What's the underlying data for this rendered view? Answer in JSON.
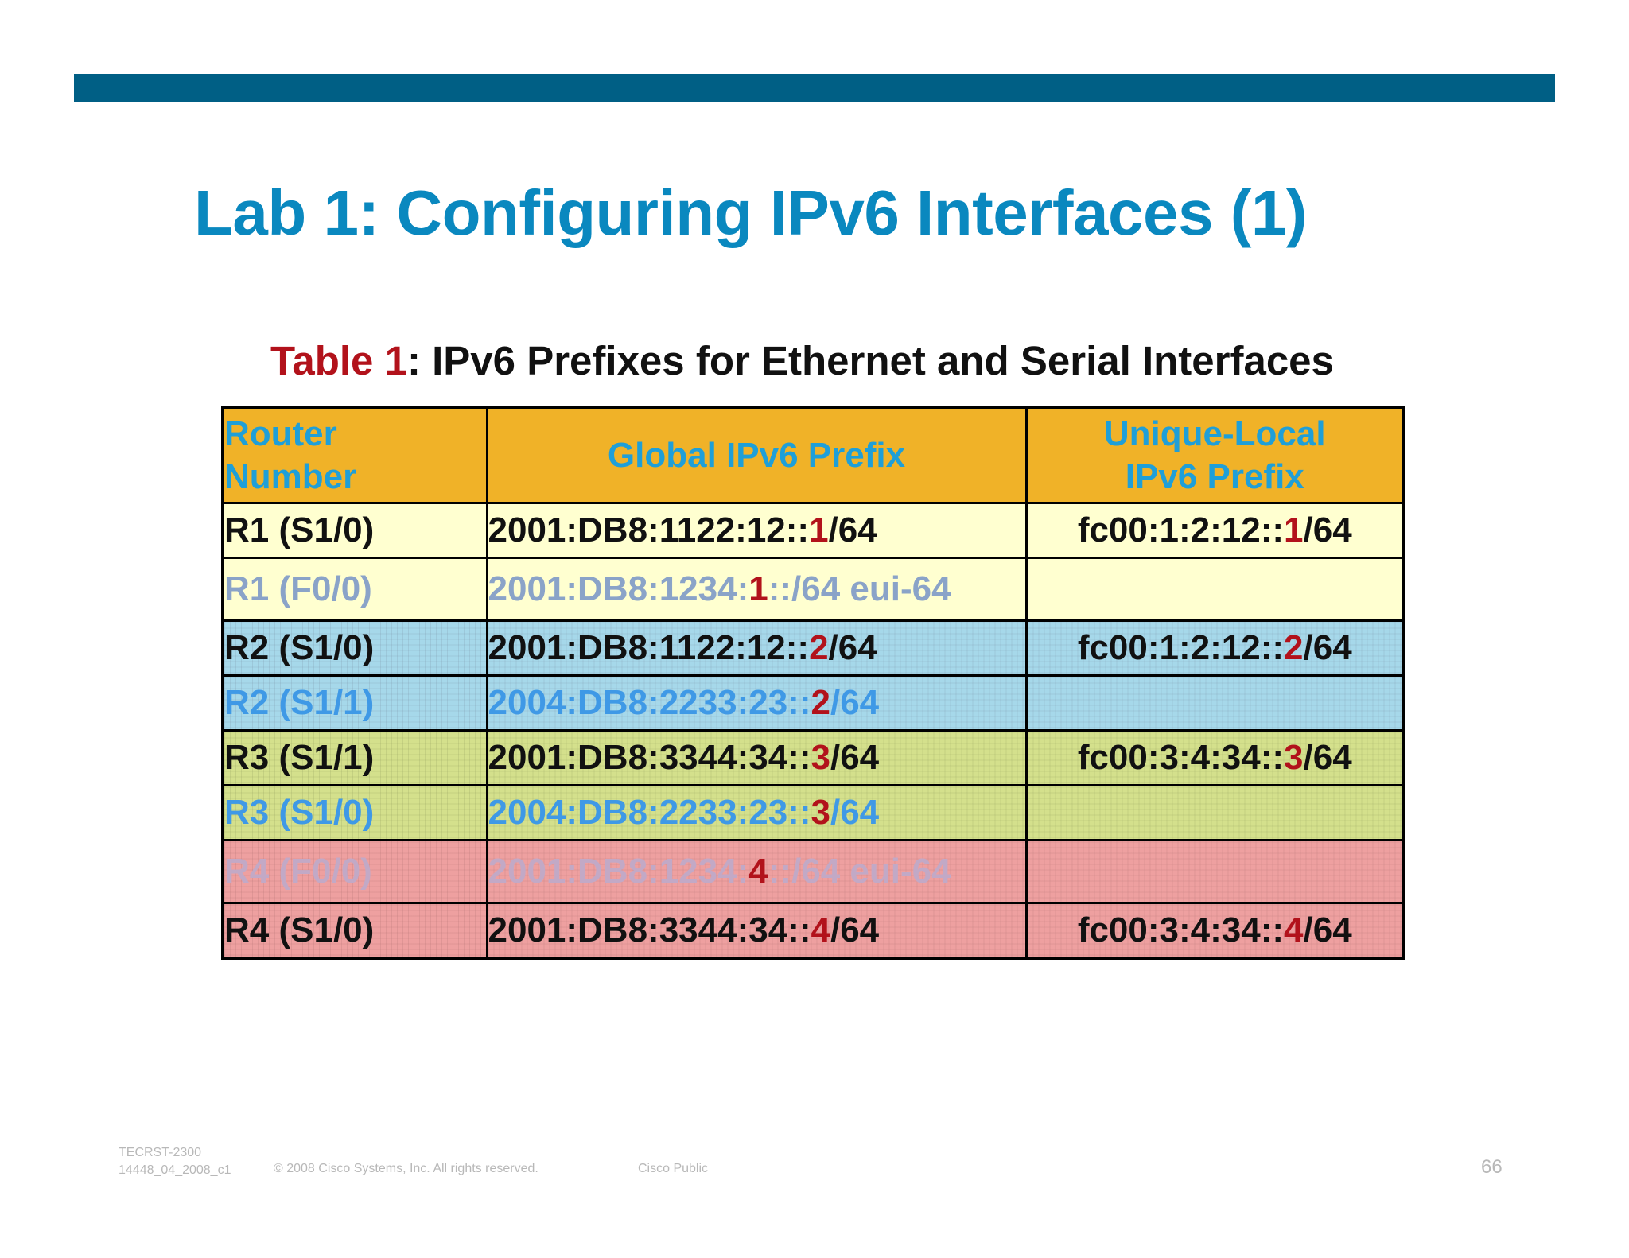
{
  "slide": {
    "title": "Lab 1: Configuring IPv6 Interfaces (1)",
    "caption_label": "Table 1",
    "caption_rest": ": IPv6 Prefixes for Ethernet and Serial Interfaces"
  },
  "table": {
    "headers": {
      "router_line1": "Router",
      "router_line2": "Number",
      "global": "Global IPv6 Prefix",
      "ula_line1": "Unique-Local",
      "ula_line2": "IPv6 Prefix"
    },
    "rows": [
      {
        "router": "R1 (S1/0)",
        "global_pre": "2001:DB8:1122:12::",
        "global_host": "1",
        "global_post": "/64",
        "ula_pre": "fc00:1:2:12::",
        "ula_host": "1",
        "ula_post": "/64"
      },
      {
        "router": "R1 (F0/0)",
        "global_pre": "2001:DB8:1234:",
        "global_host": "1",
        "global_post": "::/64 eui-64",
        "ula_pre": "",
        "ula_host": "",
        "ula_post": ""
      },
      {
        "router": "R2 (S1/0)",
        "global_pre": "2001:DB8:1122:12::",
        "global_host": "2",
        "global_post": "/64",
        "ula_pre": "fc00:1:2:12::",
        "ula_host": "2",
        "ula_post": "/64"
      },
      {
        "router": "R2 (S1/1)",
        "global_pre": "2004:DB8:2233:23::",
        "global_host": "2",
        "global_post": "/64",
        "ula_pre": "",
        "ula_host": "",
        "ula_post": ""
      },
      {
        "router": "R3 (S1/1)",
        "global_pre": "2001:DB8:3344:34::",
        "global_host": "3",
        "global_post": "/64",
        "ula_pre": "fc00:3:4:34::",
        "ula_host": "3",
        "ula_post": "/64"
      },
      {
        "router": "R3 (S1/0)",
        "global_pre": "2004:DB8:2233:23::",
        "global_host": "3",
        "global_post": "/64",
        "ula_pre": "",
        "ula_host": "",
        "ula_post": ""
      },
      {
        "router": "R4 (F0/0)",
        "global_pre": "2001:DB8:1234:",
        "global_host": "4",
        "global_post": "::/64 eui-64",
        "ula_pre": "",
        "ula_host": "",
        "ula_post": ""
      },
      {
        "router": "R4 (S1/0)",
        "global_pre": "2001:DB8:3344:34::",
        "global_host": "4",
        "global_post": "/64",
        "ula_pre": "fc00:3:4:34::",
        "ula_host": "4",
        "ula_post": "/64"
      }
    ]
  },
  "footer": {
    "course_code": "TECRST-2300",
    "doc_id": "14448_04_2008_c1",
    "copyright": "© 2008 Cisco Systems, Inc. All rights reserved.",
    "classification": "Cisco Public",
    "page_number": "66"
  },
  "colors": {
    "top_bar": "#005f85",
    "title": "#0a88bf",
    "header_bg": "#f0b228",
    "header_text": "#1f9fd8",
    "host_highlight": "#b2121b",
    "row_r1": "#ffffd0",
    "row_r2": "#a6d8ea",
    "row_r3": "#d4e08c",
    "row_r4": "#eea0a0"
  }
}
